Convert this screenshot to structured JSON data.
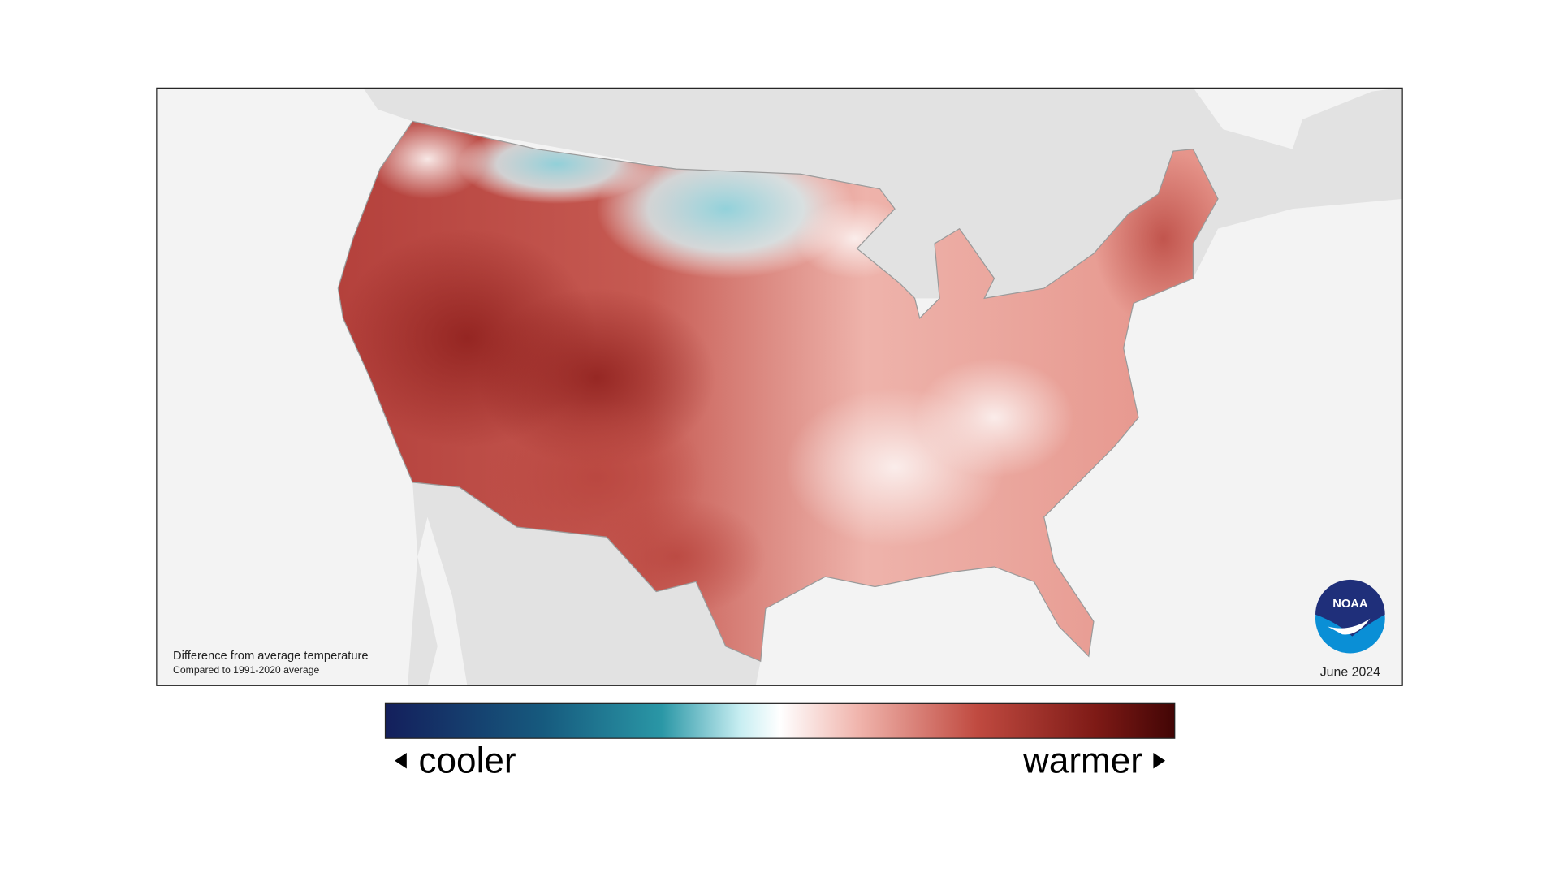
{
  "map": {
    "caption_title": "Difference from average temperature",
    "caption_subtitle": "Compared to 1991-2020 average",
    "date": "June 2024",
    "logo_text": "NOAA"
  },
  "legend": {
    "low_label": "cooler",
    "high_label": "warmer"
  }
}
